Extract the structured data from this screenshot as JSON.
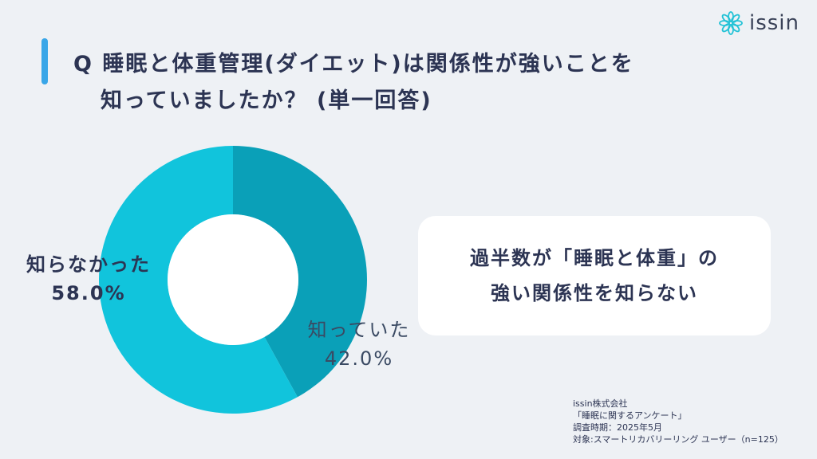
{
  "brand": {
    "name": "issin",
    "accent": "#39a6e8",
    "icon": "flower-logo-icon"
  },
  "title": {
    "line1": "Q 睡眠と体重管理(ダイエット)は関係性が強いことを",
    "line2": "知っていましたか？ (単一回答)"
  },
  "callout": {
    "line1": "過半数が「睡眠と体重」の",
    "line2": "強い関係性を知らない"
  },
  "source": {
    "lines": [
      "issin株式会社",
      "「睡眠に関するアンケート」",
      "調査時期：2025年5月",
      "対象:スマートリカバリーリング ユーザー（n=125）"
    ]
  },
  "chart_data": {
    "type": "pie",
    "donut": true,
    "slices": [
      {
        "label": "知っていた",
        "value": 42.0,
        "value_label": "42.0%",
        "color": "#0aa0b8"
      },
      {
        "label": "知らなかった",
        "value": 58.0,
        "value_label": "58.0%",
        "color": "#11c4dc"
      }
    ],
    "start": "top",
    "direction": "clockwise"
  }
}
